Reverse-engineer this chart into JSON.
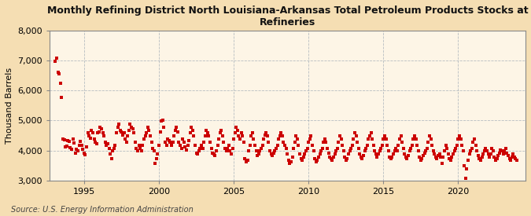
{
  "title": "Monthly Refining District North Louisiana-Arkansas Total Petroleum Products Stocks at\nRefineries",
  "ylabel": "Thousand Barrels",
  "source": "Source: U.S. Energy Information Administration",
  "fig_bg_color": "#f5deb3",
  "plot_bg_color": "#fdf5e6",
  "dot_color": "#cc0000",
  "xlim_start": 1992.7,
  "xlim_end": 2024.5,
  "ylim": [
    3000,
    8000
  ],
  "yticks": [
    3000,
    4000,
    5000,
    6000,
    7000,
    8000
  ],
  "xticks": [
    1995,
    2000,
    2005,
    2010,
    2015,
    2020
  ],
  "grid_color": "#8899aa",
  "data": [
    [
      1993.08,
      6980
    ],
    [
      1993.17,
      7080
    ],
    [
      1993.25,
      6600
    ],
    [
      1993.33,
      6550
    ],
    [
      1993.42,
      6250
    ],
    [
      1993.5,
      5760
    ],
    [
      1993.58,
      4380
    ],
    [
      1993.67,
      4350
    ],
    [
      1993.75,
      4120
    ],
    [
      1993.83,
      4150
    ],
    [
      1993.92,
      4320
    ],
    [
      1994.0,
      4300
    ],
    [
      1994.08,
      4100
    ],
    [
      1994.17,
      4050
    ],
    [
      1994.25,
      4380
    ],
    [
      1994.33,
      4250
    ],
    [
      1994.42,
      3920
    ],
    [
      1994.5,
      4050
    ],
    [
      1994.58,
      3980
    ],
    [
      1994.67,
      4180
    ],
    [
      1994.75,
      4300
    ],
    [
      1994.83,
      4180
    ],
    [
      1994.92,
      4050
    ],
    [
      1995.0,
      3920
    ],
    [
      1995.08,
      3870
    ],
    [
      1995.17,
      4120
    ],
    [
      1995.25,
      4580
    ],
    [
      1995.33,
      4480
    ],
    [
      1995.42,
      4420
    ],
    [
      1995.5,
      4680
    ],
    [
      1995.58,
      4580
    ],
    [
      1995.67,
      4380
    ],
    [
      1995.75,
      4280
    ],
    [
      1995.83,
      4220
    ],
    [
      1995.92,
      4580
    ],
    [
      1996.0,
      4620
    ],
    [
      1996.08,
      4780
    ],
    [
      1996.17,
      4720
    ],
    [
      1996.25,
      4580
    ],
    [
      1996.33,
      4480
    ],
    [
      1996.42,
      4280
    ],
    [
      1996.5,
      4180
    ],
    [
      1996.58,
      4220
    ],
    [
      1996.67,
      4080
    ],
    [
      1996.75,
      3880
    ],
    [
      1996.83,
      3720
    ],
    [
      1996.92,
      3980
    ],
    [
      1997.0,
      4080
    ],
    [
      1997.08,
      4180
    ],
    [
      1997.17,
      4580
    ],
    [
      1997.25,
      4780
    ],
    [
      1997.33,
      4880
    ],
    [
      1997.42,
      4680
    ],
    [
      1997.5,
      4620
    ],
    [
      1997.58,
      4520
    ],
    [
      1997.67,
      4580
    ],
    [
      1997.75,
      4380
    ],
    [
      1997.83,
      4280
    ],
    [
      1997.92,
      4480
    ],
    [
      1998.0,
      4680
    ],
    [
      1998.08,
      4880
    ],
    [
      1998.17,
      4780
    ],
    [
      1998.25,
      4720
    ],
    [
      1998.33,
      4580
    ],
    [
      1998.42,
      4280
    ],
    [
      1998.5,
      4080
    ],
    [
      1998.58,
      3980
    ],
    [
      1998.67,
      4180
    ],
    [
      1998.75,
      4080
    ],
    [
      1998.83,
      3980
    ],
    [
      1998.92,
      4180
    ],
    [
      1999.0,
      4380
    ],
    [
      1999.08,
      4480
    ],
    [
      1999.17,
      4580
    ],
    [
      1999.25,
      4780
    ],
    [
      1999.33,
      4680
    ],
    [
      1999.42,
      4480
    ],
    [
      1999.5,
      4280
    ],
    [
      1999.58,
      4080
    ],
    [
      1999.67,
      3980
    ],
    [
      1999.75,
      3580
    ],
    [
      1999.83,
      3720
    ],
    [
      1999.92,
      3880
    ],
    [
      2000.0,
      4180
    ],
    [
      2000.08,
      4620
    ],
    [
      2000.17,
      4980
    ],
    [
      2000.25,
      5020
    ],
    [
      2000.33,
      4780
    ],
    [
      2000.42,
      4280
    ],
    [
      2000.5,
      4180
    ],
    [
      2000.58,
      4380
    ],
    [
      2000.67,
      4320
    ],
    [
      2000.75,
      4280
    ],
    [
      2000.83,
      4180
    ],
    [
      2000.92,
      4280
    ],
    [
      2001.0,
      4480
    ],
    [
      2001.08,
      4680
    ],
    [
      2001.17,
      4780
    ],
    [
      2001.25,
      4620
    ],
    [
      2001.33,
      4280
    ],
    [
      2001.42,
      4180
    ],
    [
      2001.5,
      4080
    ],
    [
      2001.58,
      4380
    ],
    [
      2001.67,
      4280
    ],
    [
      2001.75,
      4120
    ],
    [
      2001.83,
      4020
    ],
    [
      2001.92,
      4180
    ],
    [
      2002.0,
      4320
    ],
    [
      2002.08,
      4580
    ],
    [
      2002.17,
      4780
    ],
    [
      2002.25,
      4680
    ],
    [
      2002.33,
      4480
    ],
    [
      2002.42,
      4180
    ],
    [
      2002.5,
      3920
    ],
    [
      2002.58,
      3880
    ],
    [
      2002.67,
      3980
    ],
    [
      2002.75,
      4080
    ],
    [
      2002.83,
      4180
    ],
    [
      2002.92,
      4080
    ],
    [
      2003.0,
      4280
    ],
    [
      2003.08,
      4480
    ],
    [
      2003.17,
      4680
    ],
    [
      2003.25,
      4580
    ],
    [
      2003.33,
      4480
    ],
    [
      2003.42,
      4280
    ],
    [
      2003.5,
      4080
    ],
    [
      2003.58,
      3920
    ],
    [
      2003.67,
      3880
    ],
    [
      2003.75,
      3820
    ],
    [
      2003.83,
      3980
    ],
    [
      2003.92,
      4180
    ],
    [
      2004.0,
      4380
    ],
    [
      2004.08,
      4580
    ],
    [
      2004.17,
      4680
    ],
    [
      2004.25,
      4480
    ],
    [
      2004.33,
      4280
    ],
    [
      2004.42,
      4080
    ],
    [
      2004.5,
      3980
    ],
    [
      2004.58,
      4080
    ],
    [
      2004.67,
      4180
    ],
    [
      2004.75,
      3980
    ],
    [
      2004.83,
      3880
    ],
    [
      2004.92,
      4080
    ],
    [
      2005.0,
      4380
    ],
    [
      2005.08,
      4580
    ],
    [
      2005.17,
      4780
    ],
    [
      2005.25,
      4680
    ],
    [
      2005.33,
      4480
    ],
    [
      2005.42,
      4380
    ],
    [
      2005.5,
      4580
    ],
    [
      2005.58,
      4480
    ],
    [
      2005.67,
      4280
    ],
    [
      2005.75,
      3720
    ],
    [
      2005.83,
      3620
    ],
    [
      2005.92,
      3680
    ],
    [
      2006.0,
      3980
    ],
    [
      2006.08,
      4180
    ],
    [
      2006.17,
      4480
    ],
    [
      2006.25,
      4580
    ],
    [
      2006.33,
      4380
    ],
    [
      2006.42,
      4180
    ],
    [
      2006.5,
      3980
    ],
    [
      2006.58,
      3820
    ],
    [
      2006.67,
      3880
    ],
    [
      2006.75,
      3980
    ],
    [
      2006.83,
      4080
    ],
    [
      2006.92,
      4180
    ],
    [
      2007.0,
      4380
    ],
    [
      2007.08,
      4520
    ],
    [
      2007.17,
      4580
    ],
    [
      2007.25,
      4480
    ],
    [
      2007.33,
      4280
    ],
    [
      2007.42,
      3980
    ],
    [
      2007.5,
      3880
    ],
    [
      2007.58,
      3820
    ],
    [
      2007.67,
      3920
    ],
    [
      2007.75,
      3980
    ],
    [
      2007.83,
      4080
    ],
    [
      2007.92,
      4180
    ],
    [
      2008.0,
      4380
    ],
    [
      2008.08,
      4480
    ],
    [
      2008.17,
      4580
    ],
    [
      2008.25,
      4480
    ],
    [
      2008.33,
      4280
    ],
    [
      2008.42,
      4180
    ],
    [
      2008.5,
      4080
    ],
    [
      2008.58,
      3880
    ],
    [
      2008.67,
      3680
    ],
    [
      2008.75,
      3580
    ],
    [
      2008.83,
      3620
    ],
    [
      2008.92,
      3780
    ],
    [
      2009.0,
      4080
    ],
    [
      2009.08,
      4280
    ],
    [
      2009.17,
      4480
    ],
    [
      2009.25,
      4380
    ],
    [
      2009.33,
      4180
    ],
    [
      2009.42,
      3880
    ],
    [
      2009.5,
      3720
    ],
    [
      2009.58,
      3680
    ],
    [
      2009.67,
      3780
    ],
    [
      2009.75,
      3880
    ],
    [
      2009.83,
      3980
    ],
    [
      2009.92,
      4080
    ],
    [
      2010.0,
      4280
    ],
    [
      2010.08,
      4380
    ],
    [
      2010.17,
      4480
    ],
    [
      2010.25,
      4180
    ],
    [
      2010.33,
      3980
    ],
    [
      2010.42,
      3720
    ],
    [
      2010.5,
      3620
    ],
    [
      2010.58,
      3680
    ],
    [
      2010.67,
      3780
    ],
    [
      2010.75,
      3880
    ],
    [
      2010.83,
      3980
    ],
    [
      2010.92,
      4080
    ],
    [
      2011.0,
      4280
    ],
    [
      2011.08,
      4380
    ],
    [
      2011.17,
      4280
    ],
    [
      2011.25,
      4080
    ],
    [
      2011.33,
      3920
    ],
    [
      2011.42,
      3780
    ],
    [
      2011.5,
      3720
    ],
    [
      2011.58,
      3680
    ],
    [
      2011.67,
      3780
    ],
    [
      2011.75,
      3880
    ],
    [
      2011.83,
      3980
    ],
    [
      2011.92,
      4080
    ],
    [
      2012.0,
      4280
    ],
    [
      2012.08,
      4480
    ],
    [
      2012.17,
      4380
    ],
    [
      2012.25,
      4180
    ],
    [
      2012.33,
      3980
    ],
    [
      2012.42,
      3780
    ],
    [
      2012.5,
      3680
    ],
    [
      2012.58,
      3720
    ],
    [
      2012.67,
      3880
    ],
    [
      2012.75,
      3980
    ],
    [
      2012.83,
      4080
    ],
    [
      2012.92,
      4180
    ],
    [
      2013.0,
      4380
    ],
    [
      2013.08,
      4580
    ],
    [
      2013.17,
      4480
    ],
    [
      2013.25,
      4280
    ],
    [
      2013.33,
      4080
    ],
    [
      2013.42,
      3880
    ],
    [
      2013.5,
      3780
    ],
    [
      2013.58,
      3720
    ],
    [
      2013.67,
      3820
    ],
    [
      2013.75,
      3980
    ],
    [
      2013.83,
      4080
    ],
    [
      2013.92,
      4180
    ],
    [
      2014.0,
      4380
    ],
    [
      2014.08,
      4480
    ],
    [
      2014.17,
      4580
    ],
    [
      2014.25,
      4380
    ],
    [
      2014.33,
      4180
    ],
    [
      2014.42,
      3980
    ],
    [
      2014.5,
      3880
    ],
    [
      2014.58,
      3780
    ],
    [
      2014.67,
      3880
    ],
    [
      2014.75,
      3980
    ],
    [
      2014.83,
      4080
    ],
    [
      2014.92,
      4180
    ],
    [
      2015.0,
      4380
    ],
    [
      2015.08,
      4480
    ],
    [
      2015.17,
      4380
    ],
    [
      2015.25,
      4180
    ],
    [
      2015.33,
      3980
    ],
    [
      2015.42,
      3780
    ],
    [
      2015.5,
      3720
    ],
    [
      2015.58,
      3780
    ],
    [
      2015.67,
      3880
    ],
    [
      2015.75,
      3980
    ],
    [
      2015.83,
      4080
    ],
    [
      2015.92,
      3980
    ],
    [
      2016.0,
      4180
    ],
    [
      2016.08,
      4380
    ],
    [
      2016.17,
      4480
    ],
    [
      2016.25,
      4280
    ],
    [
      2016.33,
      4080
    ],
    [
      2016.42,
      3880
    ],
    [
      2016.5,
      3780
    ],
    [
      2016.58,
      3720
    ],
    [
      2016.67,
      3820
    ],
    [
      2016.75,
      3980
    ],
    [
      2016.83,
      4080
    ],
    [
      2016.92,
      4180
    ],
    [
      2017.0,
      4380
    ],
    [
      2017.08,
      4480
    ],
    [
      2017.17,
      4380
    ],
    [
      2017.25,
      4180
    ],
    [
      2017.33,
      3980
    ],
    [
      2017.42,
      3780
    ],
    [
      2017.5,
      3680
    ],
    [
      2017.58,
      3720
    ],
    [
      2017.67,
      3820
    ],
    [
      2017.75,
      3920
    ],
    [
      2017.83,
      3980
    ],
    [
      2017.92,
      4080
    ],
    [
      2018.0,
      4280
    ],
    [
      2018.08,
      4480
    ],
    [
      2018.17,
      4380
    ],
    [
      2018.25,
      4180
    ],
    [
      2018.33,
      3980
    ],
    [
      2018.42,
      3880
    ],
    [
      2018.5,
      3780
    ],
    [
      2018.58,
      3720
    ],
    [
      2018.67,
      3820
    ],
    [
      2018.75,
      3880
    ],
    [
      2018.83,
      3780
    ],
    [
      2018.92,
      3580
    ],
    [
      2019.0,
      3780
    ],
    [
      2019.08,
      3980
    ],
    [
      2019.17,
      4180
    ],
    [
      2019.25,
      4080
    ],
    [
      2019.33,
      3880
    ],
    [
      2019.42,
      3720
    ],
    [
      2019.5,
      3680
    ],
    [
      2019.58,
      3780
    ],
    [
      2019.67,
      3880
    ],
    [
      2019.75,
      3980
    ],
    [
      2019.83,
      4080
    ],
    [
      2019.92,
      4180
    ],
    [
      2020.0,
      4380
    ],
    [
      2020.08,
      4480
    ],
    [
      2020.17,
      4380
    ],
    [
      2020.25,
      4180
    ],
    [
      2020.33,
      3980
    ],
    [
      2020.42,
      3480
    ],
    [
      2020.5,
      3080
    ],
    [
      2020.58,
      3380
    ],
    [
      2020.67,
      3680
    ],
    [
      2020.75,
      3880
    ],
    [
      2020.83,
      3980
    ],
    [
      2020.92,
      4080
    ],
    [
      2021.0,
      4280
    ],
    [
      2021.08,
      4380
    ],
    [
      2021.17,
      4180
    ],
    [
      2021.25,
      3980
    ],
    [
      2021.33,
      3820
    ],
    [
      2021.42,
      3720
    ],
    [
      2021.5,
      3680
    ],
    [
      2021.58,
      3780
    ],
    [
      2021.67,
      3880
    ],
    [
      2021.75,
      3980
    ],
    [
      2021.83,
      4080
    ],
    [
      2021.92,
      3980
    ],
    [
      2022.0,
      3880
    ],
    [
      2022.08,
      3780
    ],
    [
      2022.17,
      3880
    ],
    [
      2022.25,
      4080
    ],
    [
      2022.33,
      3980
    ],
    [
      2022.42,
      3780
    ],
    [
      2022.5,
      3680
    ],
    [
      2022.58,
      3720
    ],
    [
      2022.67,
      3820
    ],
    [
      2022.75,
      3920
    ],
    [
      2022.83,
      4020
    ],
    [
      2022.92,
      3980
    ],
    [
      2023.0,
      3880
    ],
    [
      2023.08,
      3980
    ],
    [
      2023.17,
      4080
    ],
    [
      2023.25,
      3920
    ],
    [
      2023.33,
      3820
    ],
    [
      2023.42,
      3720
    ],
    [
      2023.5,
      3680
    ],
    [
      2023.58,
      3780
    ],
    [
      2023.67,
      3880
    ],
    [
      2023.75,
      3780
    ],
    [
      2023.83,
      3720
    ],
    [
      2023.92,
      3680
    ]
  ]
}
